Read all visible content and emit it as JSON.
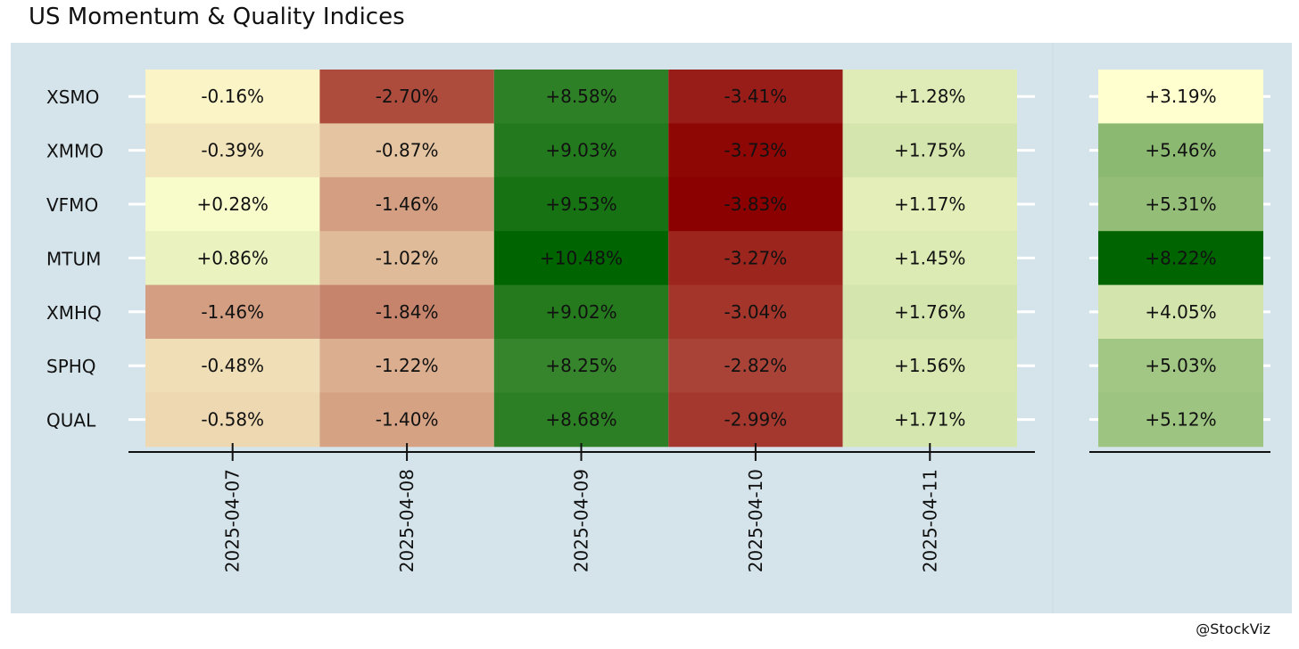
{
  "title": "US Momentum & Quality Indices",
  "credit": "@StockViz",
  "colors": {
    "panel_bg": "#d5e4eb",
    "neg_strong": "#8b0000",
    "neutral": "#ffffd0",
    "pos_strong": "#006400",
    "axis": "#111111",
    "tick": "#ffffff"
  },
  "chart_data": [
    {
      "type": "heatmap",
      "title": "",
      "xlabel": "",
      "ylabel": "",
      "x": [
        "2025-04-07",
        "2025-04-08",
        "2025-04-09",
        "2025-04-10",
        "2025-04-11"
      ],
      "y": [
        "XSMO",
        "XMMO",
        "VFMO",
        "MTUM",
        "XMHQ",
        "SPHQ",
        "QUAL"
      ],
      "values": [
        [
          -0.16,
          -2.7,
          8.58,
          -3.41,
          1.28
        ],
        [
          -0.39,
          -0.87,
          9.03,
          -3.73,
          1.75
        ],
        [
          0.28,
          -1.46,
          9.53,
          -3.83,
          1.17
        ],
        [
          0.86,
          -1.02,
          10.48,
          -3.27,
          1.45
        ],
        [
          -1.46,
          -1.84,
          9.02,
          -3.04,
          1.76
        ],
        [
          -0.48,
          -1.22,
          8.25,
          -2.82,
          1.56
        ],
        [
          -0.58,
          -1.4,
          8.68,
          -2.99,
          1.71
        ]
      ],
      "labels": [
        [
          "-0.16%",
          "-2.70%",
          "+8.58%",
          "-3.41%",
          "+1.28%"
        ],
        [
          "-0.39%",
          "-0.87%",
          "+9.03%",
          "-3.73%",
          "+1.75%"
        ],
        [
          "+0.28%",
          "-1.46%",
          "+9.53%",
          "-3.83%",
          "+1.17%"
        ],
        [
          "+0.86%",
          "-1.02%",
          "+10.48%",
          "-3.27%",
          "+1.45%"
        ],
        [
          "-1.46%",
          "-1.84%",
          "+9.02%",
          "-3.04%",
          "+1.76%"
        ],
        [
          "-0.48%",
          "-1.22%",
          "+8.25%",
          "-2.82%",
          "+1.56%"
        ],
        [
          "-0.58%",
          "-1.40%",
          "+8.68%",
          "-2.99%",
          "+1.71%"
        ]
      ],
      "color_scale": "red-yellow-green"
    },
    {
      "type": "heatmap",
      "title": "",
      "xlabel": "",
      "ylabel": "",
      "x": [
        ""
      ],
      "y": [
        "XSMO",
        "XMMO",
        "VFMO",
        "MTUM",
        "XMHQ",
        "SPHQ",
        "QUAL"
      ],
      "values": [
        [
          3.19
        ],
        [
          5.46
        ],
        [
          5.31
        ],
        [
          8.22
        ],
        [
          4.05
        ],
        [
          5.03
        ],
        [
          5.12
        ]
      ],
      "labels": [
        [
          "+3.19%"
        ],
        [
          "+5.46%"
        ],
        [
          "+5.31%"
        ],
        [
          "+8.22%"
        ],
        [
          "+4.05%"
        ],
        [
          "+5.03%"
        ],
        [
          "+5.12%"
        ]
      ],
      "color_scale": "yellow-green"
    }
  ]
}
